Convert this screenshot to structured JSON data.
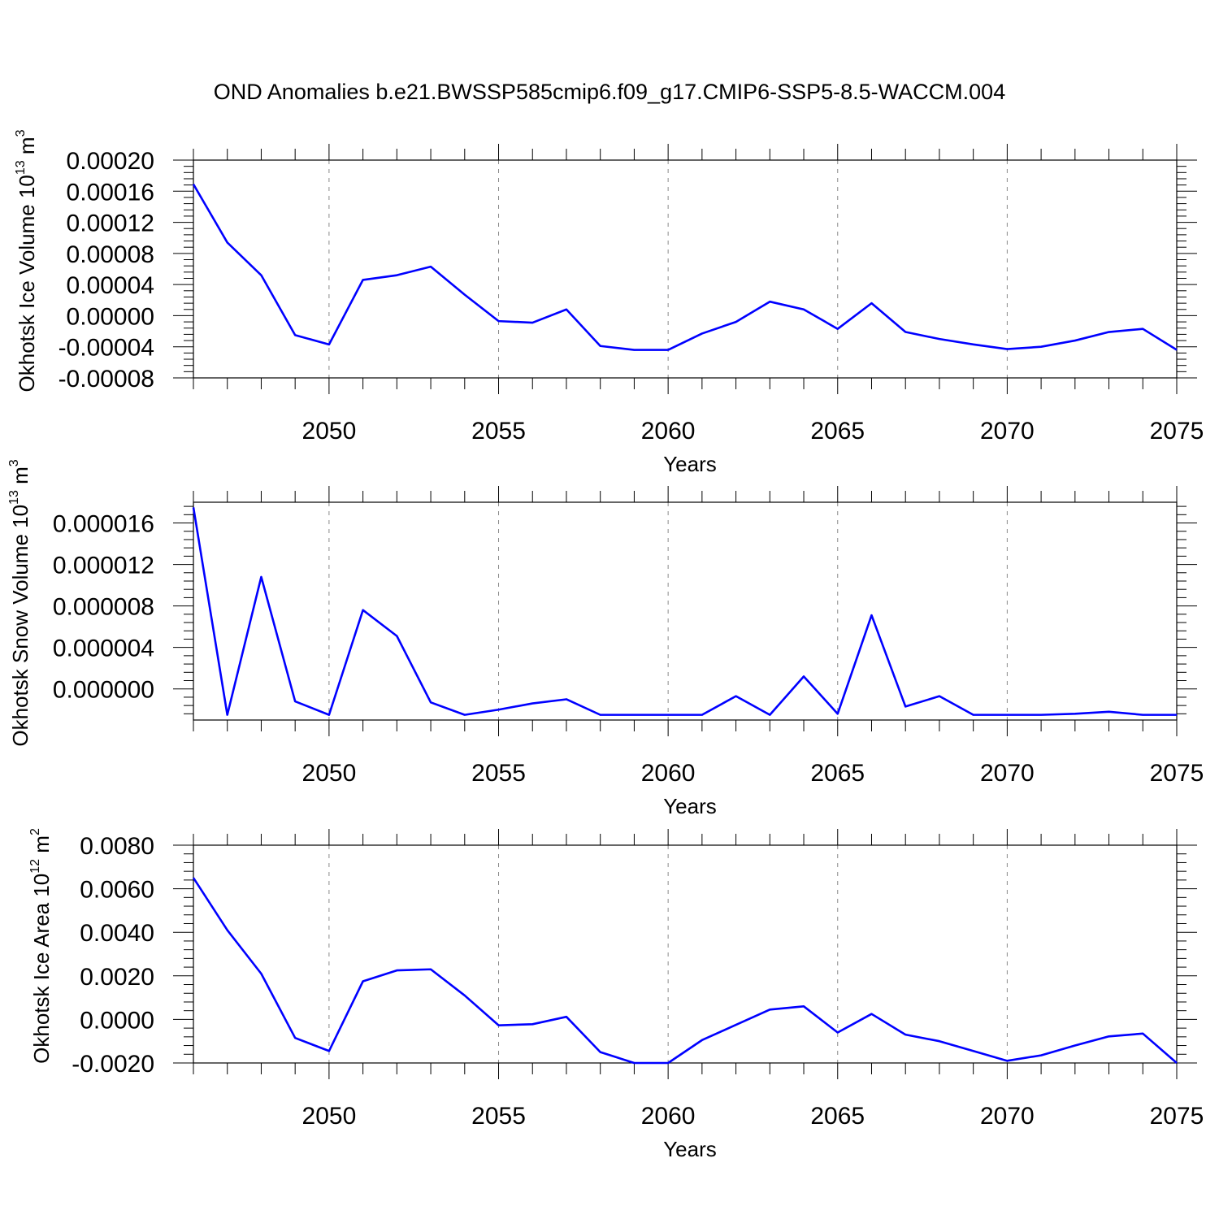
{
  "figure": {
    "title": "OND Anomalies b.e21.BWSSP585cmip6.f09_g17.CMIP6-SSP5-8.5-WACCM.004"
  },
  "style": {
    "line_color": "#0000ff",
    "axis_color": "#000000",
    "grid_color": "#888888"
  },
  "chart_data": [
    {
      "type": "line",
      "title": "",
      "xlabel": "Years",
      "ylabel": "Okhotsk Ice Volume 10",
      "ylabel_exp": "13",
      "ylabel_unit": "m",
      "ylabel_unit_exp": "3",
      "xlim": [
        2046,
        2075
      ],
      "ylim": [
        -8e-05,
        0.0002
      ],
      "x_ticks": [
        2050,
        2055,
        2060,
        2065,
        2070,
        2075
      ],
      "x_tick_labels": [
        "2050",
        "2055",
        "2060",
        "2065",
        "2070",
        "2075"
      ],
      "y_ticks": [
        -8e-05,
        -4e-05,
        0.0,
        4e-05,
        8e-05,
        0.00012,
        0.00016,
        0.0002
      ],
      "y_tick_labels": [
        "-0.00008",
        "-0.00004",
        "0.00000",
        "0.00004",
        "0.00008",
        "0.00012",
        "0.00016",
        "0.00020"
      ],
      "grid": "vertical dashed at major x ticks",
      "series": [
        {
          "x": [
            2046,
            2047,
            2048,
            2049,
            2050,
            2051,
            2052,
            2053,
            2054,
            2055,
            2056,
            2057,
            2058,
            2059,
            2060,
            2061,
            2062,
            2063,
            2064,
            2065,
            2066,
            2067,
            2068,
            2069,
            2070,
            2071,
            2072,
            2073,
            2074,
            2075
          ],
          "values": [
            0.000169,
            9.4e-05,
            5.2e-05,
            -2.5e-05,
            -3.7e-05,
            4.6e-05,
            5.2e-05,
            6.3e-05,
            2.7e-05,
            -7e-06,
            -9e-06,
            8e-06,
            -3.9e-05,
            -4.4e-05,
            -4.4e-05,
            -2.3e-05,
            -8e-06,
            1.8e-05,
            8e-06,
            -1.7e-05,
            1.6e-05,
            -2.1e-05,
            -3e-05,
            -3.7e-05,
            -4.3e-05,
            -4e-05,
            -3.2e-05,
            -2.1e-05,
            -1.7e-05,
            -4.4e-05
          ]
        }
      ]
    },
    {
      "type": "line",
      "title": "",
      "xlabel": "Years",
      "ylabel": "Okhotsk Snow Volume 10",
      "ylabel_exp": "13",
      "ylabel_unit": "m",
      "ylabel_unit_exp": "3",
      "xlim": [
        2046,
        2075
      ],
      "ylim": [
        -3e-06,
        1.8e-05
      ],
      "x_ticks": [
        2050,
        2055,
        2060,
        2065,
        2070,
        2075
      ],
      "x_tick_labels": [
        "2050",
        "2055",
        "2060",
        "2065",
        "2070",
        "2075"
      ],
      "y_ticks": [
        0.0,
        4e-06,
        8e-06,
        1.2e-05,
        1.6e-05
      ],
      "y_tick_labels": [
        "0.000000",
        "0.000004",
        "0.000008",
        "0.000012",
        "0.000016"
      ],
      "grid": "vertical dashed at major x ticks",
      "series": [
        {
          "x": [
            2046,
            2047,
            2048,
            2049,
            2050,
            2051,
            2052,
            2053,
            2054,
            2055,
            2056,
            2057,
            2058,
            2059,
            2060,
            2061,
            2062,
            2063,
            2064,
            2065,
            2066,
            2067,
            2068,
            2069,
            2070,
            2071,
            2072,
            2073,
            2074,
            2075
          ],
          "values": [
            1.75e-05,
            -2.5e-06,
            1.08e-05,
            -1.2e-06,
            -2.5e-06,
            7.6e-06,
            5.1e-06,
            -1.3e-06,
            -2.5e-06,
            -2e-06,
            -1.4e-06,
            -1e-06,
            -2.5e-06,
            -2.5e-06,
            -2.5e-06,
            -2.5e-06,
            -7e-07,
            -2.5e-06,
            1.2e-06,
            -2.4e-06,
            7.1e-06,
            -1.7e-06,
            -7e-07,
            -2.5e-06,
            -2.5e-06,
            -2.5e-06,
            -2.4e-06,
            -2.2e-06,
            -2.5e-06,
            -2.5e-06
          ]
        }
      ]
    },
    {
      "type": "line",
      "title": "",
      "xlabel": "Years",
      "ylabel": "Okhotsk Ice Area 10",
      "ylabel_exp": "12",
      "ylabel_unit": "m",
      "ylabel_unit_exp": "2",
      "xlim": [
        2046,
        2075
      ],
      "ylim": [
        -0.002,
        0.008
      ],
      "x_ticks": [
        2050,
        2055,
        2060,
        2065,
        2070,
        2075
      ],
      "x_tick_labels": [
        "2050",
        "2055",
        "2060",
        "2065",
        "2070",
        "2075"
      ],
      "y_ticks": [
        -0.002,
        0.0,
        0.002,
        0.004,
        0.006,
        0.008
      ],
      "y_tick_labels": [
        "-0.0020",
        "0.0000",
        "0.0020",
        "0.0040",
        "0.0060",
        "0.0080"
      ],
      "grid": "vertical dashed at major x ticks",
      "series": [
        {
          "x": [
            2046,
            2047,
            2048,
            2049,
            2050,
            2051,
            2052,
            2053,
            2054,
            2055,
            2056,
            2057,
            2058,
            2059,
            2060,
            2061,
            2062,
            2063,
            2064,
            2065,
            2066,
            2067,
            2068,
            2069,
            2070,
            2071,
            2072,
            2073,
            2074,
            2075
          ],
          "values": [
            0.0065,
            0.0041,
            0.0021,
            -0.00085,
            -0.00145,
            0.00175,
            0.00225,
            0.0023,
            0.0011,
            -0.00027,
            -0.00022,
            0.00012,
            -0.0015,
            -0.002,
            -0.002,
            -0.00095,
            -0.00025,
            0.00045,
            0.0006,
            -0.0006,
            0.00025,
            -0.0007,
            -0.001,
            -0.00145,
            -0.0019,
            -0.00165,
            -0.0012,
            -0.00078,
            -0.00065,
            -0.002
          ]
        }
      ]
    }
  ]
}
